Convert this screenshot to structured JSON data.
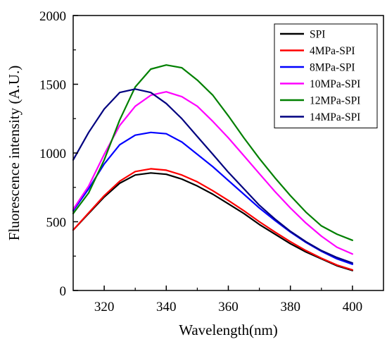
{
  "chart_data": {
    "type": "line",
    "title": "",
    "xlabel": "Wavelength(nm)",
    "ylabel": "Fluorescence intensity (A.U.)",
    "xlim": [
      310,
      410
    ],
    "ylim": [
      0,
      2000
    ],
    "xticks": [
      320,
      340,
      360,
      380,
      400
    ],
    "yticks": [
      0,
      500,
      1000,
      1500,
      2000
    ],
    "legend_position": "top-right",
    "grid": false,
    "x": [
      310,
      315,
      320,
      325,
      330,
      335,
      340,
      345,
      350,
      355,
      360,
      365,
      370,
      375,
      380,
      385,
      390,
      395,
      400
    ],
    "series": [
      {
        "name": "SPI",
        "color": "#000000",
        "values": [
          440,
          560,
          680,
          780,
          840,
          855,
          845,
          810,
          760,
          700,
          630,
          560,
          480,
          410,
          340,
          280,
          230,
          180,
          145
        ]
      },
      {
        "name": "4MPa-SPI",
        "color": "#ff0000",
        "values": [
          440,
          565,
          690,
          795,
          865,
          885,
          875,
          840,
          790,
          725,
          655,
          580,
          500,
          425,
          355,
          290,
          235,
          185,
          150
        ]
      },
      {
        "name": "8MPa-SPI",
        "color": "#0000ff",
        "values": [
          580,
          740,
          920,
          1060,
          1130,
          1150,
          1140,
          1080,
          990,
          900,
          800,
          700,
          600,
          510,
          425,
          350,
          285,
          230,
          190
        ]
      },
      {
        "name": "10MPa-SPI",
        "color": "#ff00ff",
        "values": [
          590,
          760,
          990,
          1200,
          1340,
          1420,
          1445,
          1410,
          1340,
          1230,
          1110,
          980,
          850,
          720,
          600,
          490,
          395,
          315,
          265
        ]
      },
      {
        "name": "12MPa-SPI",
        "color": "#008000",
        "values": [
          560,
          710,
          950,
          1240,
          1480,
          1610,
          1640,
          1620,
          1530,
          1420,
          1270,
          1110,
          960,
          820,
          690,
          570,
          470,
          410,
          365
        ]
      },
      {
        "name": "14MPa-SPI",
        "color": "#000080",
        "values": [
          950,
          1150,
          1320,
          1440,
          1465,
          1440,
          1360,
          1250,
          1120,
          990,
          860,
          740,
          620,
          520,
          430,
          355,
          290,
          240,
          200
        ]
      }
    ]
  }
}
